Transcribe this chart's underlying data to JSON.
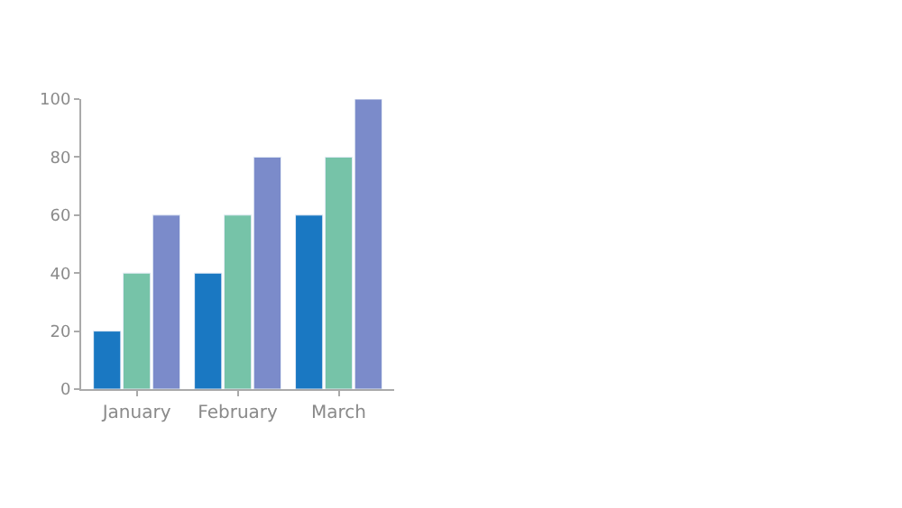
{
  "chart_data": {
    "type": "bar",
    "categories": [
      "January",
      "February",
      "March"
    ],
    "series": [
      {
        "color": "#1a78c2",
        "values": [
          20,
          40,
          60
        ]
      },
      {
        "color": "#76c3a8",
        "values": [
          40,
          60,
          80
        ]
      },
      {
        "color": "#7b8bca",
        "values": [
          60,
          80,
          100
        ]
      }
    ],
    "ylim": [
      0,
      100
    ],
    "yticks": [
      0,
      20,
      40,
      60,
      80,
      100
    ]
  }
}
